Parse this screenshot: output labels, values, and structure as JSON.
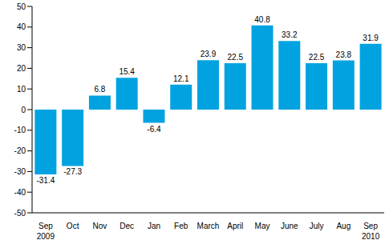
{
  "chart_data": {
    "type": "bar",
    "categories": [
      "Sep 2009",
      "Oct",
      "Nov",
      "Dec",
      "Jan",
      "Feb",
      "March",
      "April",
      "May",
      "June",
      "July",
      "Aug",
      "Sep 2010"
    ],
    "values": [
      -31.4,
      -27.3,
      6.8,
      15.4,
      -6.4,
      12.1,
      23.9,
      22.5,
      40.8,
      33.2,
      22.5,
      23.8,
      31.9
    ],
    "color": "#00a3e0",
    "ylim": [
      -50,
      50
    ],
    "yticks": [
      -50,
      -40,
      -30,
      -20,
      -10,
      0,
      10,
      20,
      30,
      40,
      50
    ],
    "grid": false,
    "data_labels": true
  }
}
